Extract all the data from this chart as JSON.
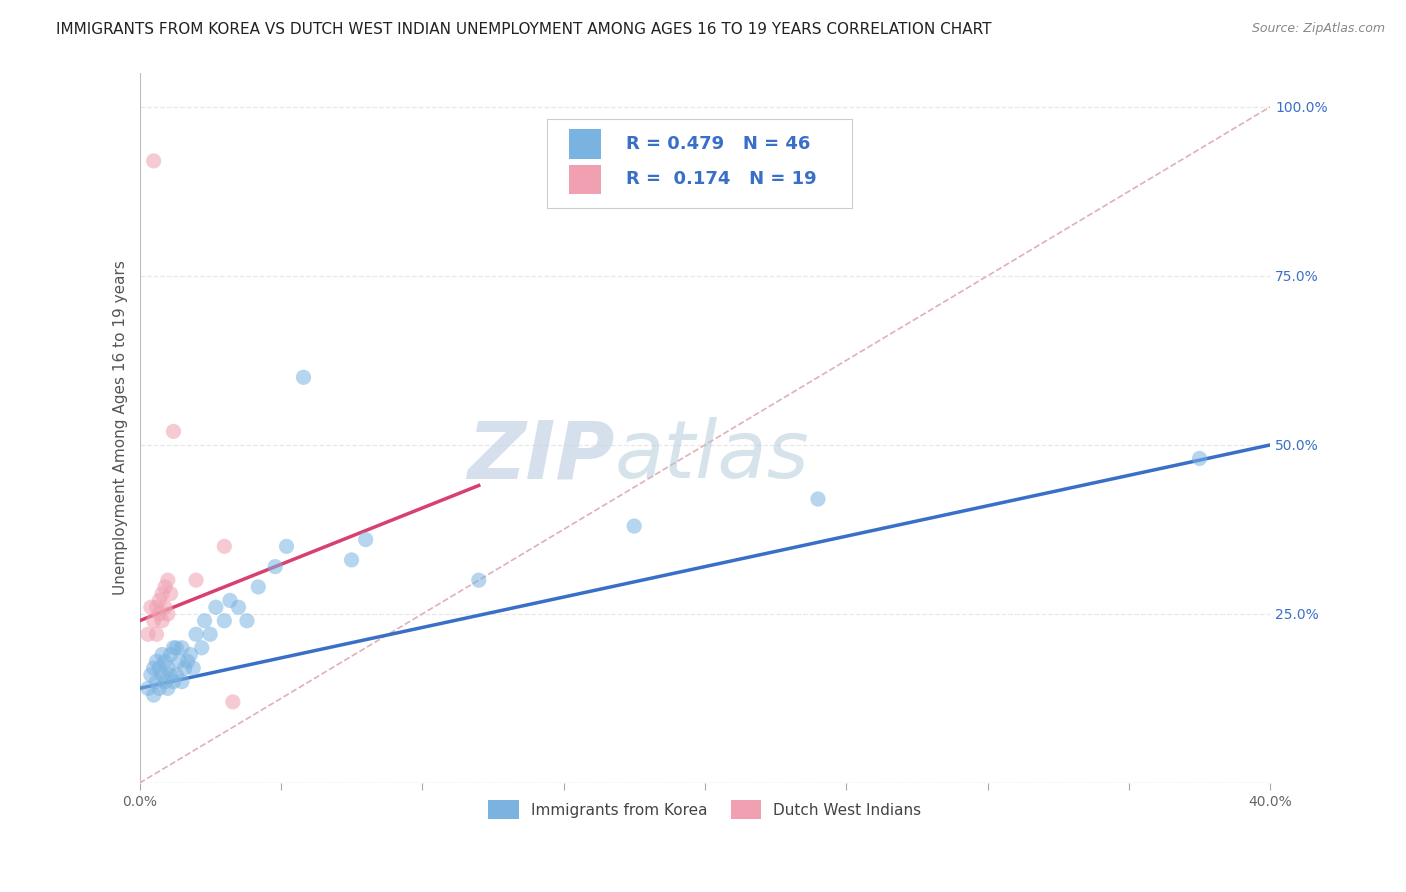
{
  "title": "IMMIGRANTS FROM KOREA VS DUTCH WEST INDIAN UNEMPLOYMENT AMONG AGES 16 TO 19 YEARS CORRELATION CHART",
  "source": "Source: ZipAtlas.com",
  "ylabel": "Unemployment Among Ages 16 to 19 years",
  "xlim": [
    0.0,
    0.4
  ],
  "ylim": [
    0.0,
    1.05
  ],
  "xticks": [
    0.0,
    0.05,
    0.1,
    0.15,
    0.2,
    0.25,
    0.3,
    0.35,
    0.4
  ],
  "xtick_labels": [
    "0.0%",
    "",
    "",
    "",
    "",
    "",
    "",
    "",
    "40.0%"
  ],
  "yticks_right": [
    0.0,
    0.25,
    0.5,
    0.75,
    1.0
  ],
  "ytick_labels_right": [
    "",
    "25.0%",
    "50.0%",
    "75.0%",
    "100.0%"
  ],
  "blue_color": "#7ab3e0",
  "pink_color": "#f0a0b0",
  "blue_line_color": "#3a6fc8",
  "pink_line_color": "#d84070",
  "trend_line_dashed_color": "#e0b0b8",
  "watermark_zip_color": "#c8d8e8",
  "watermark_atlas_color": "#b8c8d8",
  "legend_label_blue": "Immigrants from Korea",
  "legend_label_pink": "Dutch West Indians",
  "blue_scatter_x": [
    0.003,
    0.004,
    0.005,
    0.005,
    0.006,
    0.006,
    0.007,
    0.007,
    0.008,
    0.008,
    0.009,
    0.009,
    0.01,
    0.01,
    0.011,
    0.011,
    0.012,
    0.012,
    0.013,
    0.013,
    0.014,
    0.015,
    0.015,
    0.016,
    0.017,
    0.018,
    0.019,
    0.02,
    0.022,
    0.023,
    0.025,
    0.027,
    0.03,
    0.032,
    0.035,
    0.038,
    0.042,
    0.048,
    0.052,
    0.058,
    0.075,
    0.08,
    0.12,
    0.175,
    0.24,
    0.375
  ],
  "blue_scatter_y": [
    0.14,
    0.16,
    0.13,
    0.17,
    0.15,
    0.18,
    0.14,
    0.17,
    0.16,
    0.19,
    0.15,
    0.18,
    0.14,
    0.17,
    0.16,
    0.19,
    0.15,
    0.2,
    0.16,
    0.2,
    0.18,
    0.15,
    0.2,
    0.17,
    0.18,
    0.19,
    0.17,
    0.22,
    0.2,
    0.24,
    0.22,
    0.26,
    0.24,
    0.27,
    0.26,
    0.24,
    0.29,
    0.32,
    0.35,
    0.6,
    0.33,
    0.36,
    0.3,
    0.38,
    0.42,
    0.48
  ],
  "pink_scatter_x": [
    0.003,
    0.004,
    0.005,
    0.006,
    0.006,
    0.007,
    0.007,
    0.008,
    0.008,
    0.009,
    0.009,
    0.01,
    0.01,
    0.011,
    0.012,
    0.02,
    0.03,
    0.033,
    0.005
  ],
  "pink_scatter_y": [
    0.22,
    0.26,
    0.24,
    0.22,
    0.26,
    0.25,
    0.27,
    0.24,
    0.28,
    0.26,
    0.29,
    0.25,
    0.3,
    0.28,
    0.52,
    0.3,
    0.35,
    0.12,
    0.92
  ],
  "blue_trend_x": [
    0.0,
    0.4
  ],
  "blue_trend_y": [
    0.14,
    0.5
  ],
  "pink_trend_x": [
    0.0,
    0.12
  ],
  "pink_trend_y": [
    0.24,
    0.44
  ],
  "diag_trend_x": [
    0.0,
    0.4
  ],
  "diag_trend_y": [
    0.0,
    1.0
  ],
  "grid_color": "#e8e8e8",
  "bg_color": "#ffffff",
  "title_fontsize": 11,
  "ylabel_fontsize": 11,
  "tick_fontsize": 10
}
